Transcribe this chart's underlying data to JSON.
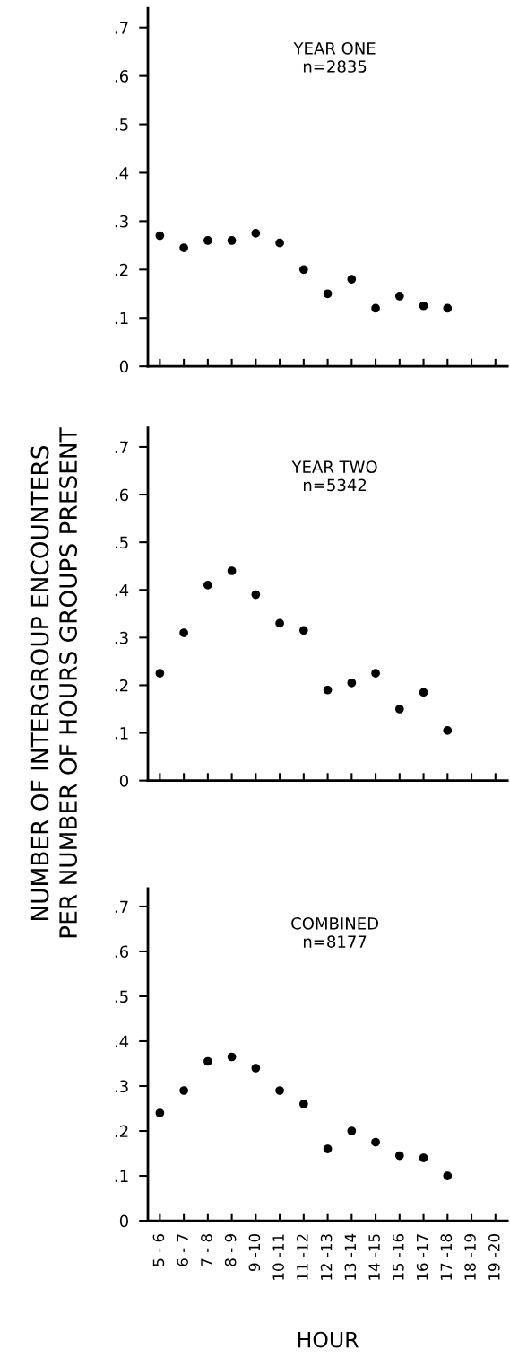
{
  "chart_data": [
    {
      "type": "scatter",
      "title": "YEAR ONE\nn=2835",
      "categories": [
        null,
        null,
        null,
        null,
        null,
        null,
        null,
        null,
        null,
        null,
        null,
        null,
        null,
        null,
        null
      ],
      "values": [
        0.27,
        0.245,
        0.26,
        0.26,
        0.275,
        0.255,
        0.2,
        0.15,
        0.18,
        0.12,
        0.145,
        0.125,
        0.12,
        null,
        null
      ],
      "color": "#000000",
      "marker": "circle",
      "ylim": [
        0,
        0.74
      ],
      "yticks": [
        {
          "value": 0,
          "label": "0"
        },
        {
          "value": 0.1,
          "label": ".1"
        },
        {
          "value": 0.2,
          "label": ".2"
        },
        {
          "value": 0.3,
          "label": ".3"
        },
        {
          "value": 0.4,
          "label": ".4"
        },
        {
          "value": 0.5,
          "label": ".5"
        },
        {
          "value": 0.6,
          "label": ".6"
        },
        {
          "value": 0.7,
          "label": ".7"
        }
      ],
      "tick_labels": "y",
      "grid": false,
      "legend": false
    },
    {
      "type": "scatter",
      "title": "YEAR TWO\nn=5342",
      "ylabel": "NUMBER OF INTERGROUP ENCOUNTERS\nPER NUMBER OF HOURS GROUPS PRESENT",
      "categories": [
        null,
        null,
        null,
        null,
        null,
        null,
        null,
        null,
        null,
        null,
        null,
        null,
        null,
        null,
        null
      ],
      "values": [
        0.225,
        0.31,
        0.41,
        0.44,
        0.39,
        0.33,
        0.315,
        0.19,
        0.205,
        0.225,
        0.15,
        0.185,
        0.105,
        null,
        null
      ],
      "color": "#000000",
      "marker": "circle",
      "ylim": [
        0,
        0.74
      ],
      "yticks": [
        {
          "value": 0,
          "label": "0"
        },
        {
          "value": 0.1,
          "label": ".1"
        },
        {
          "value": 0.2,
          "label": ".2"
        },
        {
          "value": 0.3,
          "label": ".3"
        },
        {
          "value": 0.4,
          "label": ".4"
        },
        {
          "value": 0.5,
          "label": ".5"
        },
        {
          "value": 0.6,
          "label": ".6"
        },
        {
          "value": 0.7,
          "label": ".7"
        }
      ],
      "tick_labels": "y",
      "grid": false,
      "legend": false
    },
    {
      "type": "scatter",
      "title": "COMBINED\nn=8177",
      "xlabel": "HOUR",
      "categories": [
        "5 - 6",
        "6 - 7",
        "7 - 8",
        "8 - 9",
        "9 -10",
        "10 -11",
        "11 -12",
        "12 -13",
        "13 -14",
        "14 -15",
        "15 -16",
        "16 -17",
        "17 -18",
        "18 -19",
        "19 -20"
      ],
      "values": [
        0.24,
        0.29,
        0.355,
        0.365,
        0.34,
        0.29,
        0.26,
        0.16,
        0.2,
        0.175,
        0.145,
        0.14,
        0.1,
        null,
        null
      ],
      "color": "#000000",
      "marker": "circle",
      "ylim": [
        0,
        0.74
      ],
      "yticks": [
        {
          "value": 0,
          "label": "0"
        },
        {
          "value": 0.1,
          "label": ".1"
        },
        {
          "value": 0.2,
          "label": ".2"
        },
        {
          "value": 0.3,
          "label": ".3"
        },
        {
          "value": 0.4,
          "label": ".4"
        },
        {
          "value": 0.5,
          "label": ".5"
        },
        {
          "value": 0.6,
          "label": ".6"
        },
        {
          "value": 0.7,
          "label": ".7"
        }
      ],
      "grid": false,
      "legend": false
    }
  ]
}
